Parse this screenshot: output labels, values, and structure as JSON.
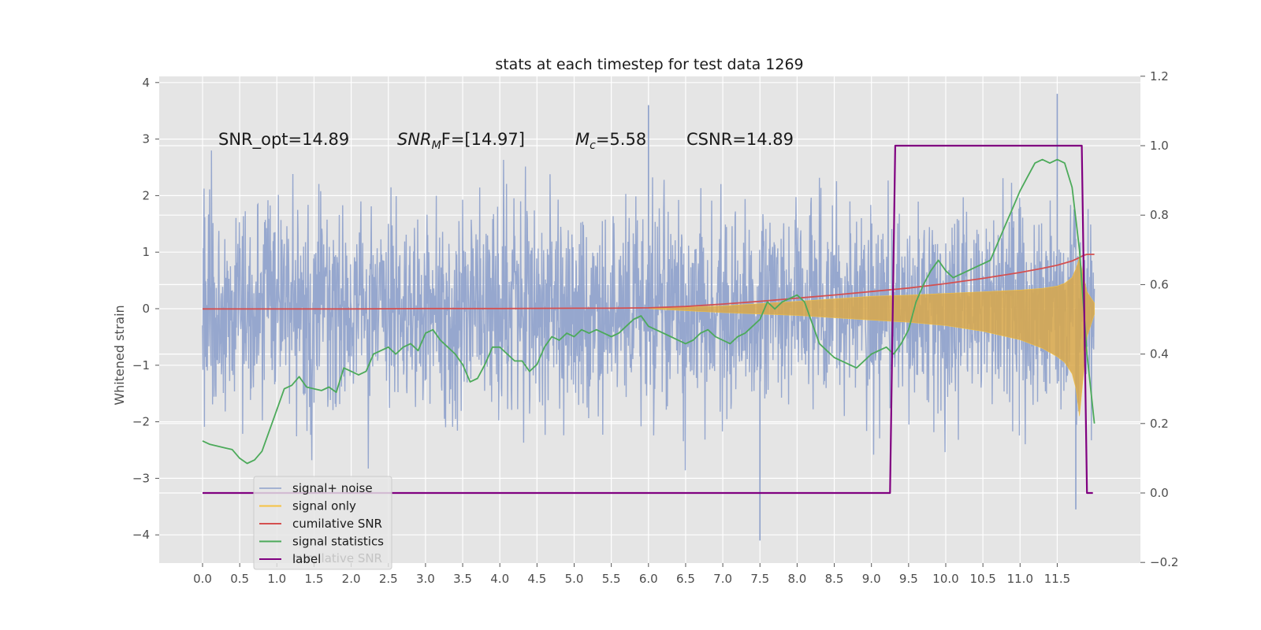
{
  "chart_data": {
    "type": "line",
    "title": "stats at each timestep for test data 1269",
    "xlabel": "",
    "ylabel": "Whitened strain",
    "y2label": "",
    "xlim": [
      -0.55,
      12.6
    ],
    "ylim": [
      -4.5,
      4.1
    ],
    "y2lim": [
      -0.2,
      1.2
    ],
    "grid": true,
    "background": "#e5e5e5",
    "x_ticks": [
      "0.0",
      "0.5",
      "1.0",
      "1.5",
      "2.0",
      "2.5",
      "3.0",
      "3.5",
      "4.0",
      "4.5",
      "5.0",
      "5.5",
      "6.0",
      "6.5",
      "7.0",
      "7.5",
      "8.0",
      "8.5",
      "9.0",
      "9.5",
      "10.0",
      "10.5",
      "11.0",
      "11.5"
    ],
    "y_ticks": [
      "4",
      "3",
      "2",
      "1",
      "0",
      "−1",
      "−2",
      "−3",
      "−4"
    ],
    "y2_ticks": [
      "1.2",
      "1.0",
      "0.8",
      "0.6",
      "0.4",
      "0.2",
      "0.0",
      "−0.2"
    ],
    "annotations": {
      "snr_opt": "SNR_opt=14.89",
      "snr_mf_main": "SNR",
      "snr_mf_sub": "M",
      "snr_mf_rest": "F=[14.97]",
      "mc_main": "M",
      "mc_sub": "c",
      "mc_rest": "=5.58",
      "csnr": "CSNR=14.89"
    },
    "legend": {
      "placement": "lower-left",
      "ghost_text": "cumilative SNR",
      "entries": [
        {
          "label": "signal+ noise",
          "color": "#8da0cb"
        },
        {
          "label": "signal only",
          "color": "#f5c242"
        },
        {
          "label": "cumilative SNR",
          "color": "#d45050"
        },
        {
          "label": "signal statistics",
          "color": "#4caa5a"
        },
        {
          "label": "label",
          "color": "#800080"
        }
      ]
    },
    "series": [
      {
        "name": "signal+ noise",
        "axis": "left",
        "color": "#8da0cb",
        "x_range": [
          0.0,
          12.0
        ],
        "amplitude_min": [
          -2.7,
          3.6
        ],
        "notable_outliers": [
          {
            "x": 6.0,
            "y": 3.6
          },
          {
            "x": 7.5,
            "y": -4.1
          },
          {
            "x": 11.5,
            "y": 3.8
          },
          {
            "x": 11.75,
            "y": -3.55
          }
        ]
      },
      {
        "name": "signal only",
        "axis": "left",
        "color": "#f5c242",
        "envelope_x": [
          6.0,
          7.0,
          8.0,
          9.0,
          9.5,
          10.0,
          10.5,
          11.0,
          11.3,
          11.5,
          11.6,
          11.7,
          11.75,
          11.8,
          11.9,
          12.0
        ],
        "envelope_upper": [
          0.0,
          0.05,
          0.13,
          0.22,
          0.24,
          0.27,
          0.3,
          0.33,
          0.36,
          0.4,
          0.45,
          0.55,
          0.7,
          0.9,
          0.3,
          0.1
        ],
        "envelope_lower": [
          0.0,
          -0.07,
          -0.12,
          -0.2,
          -0.24,
          -0.3,
          -0.4,
          -0.55,
          -0.7,
          -0.85,
          -0.95,
          -1.15,
          -1.4,
          -1.9,
          -0.5,
          -0.1
        ]
      },
      {
        "name": "cumilative SNR",
        "axis": "right",
        "color": "#d45050",
        "x": [
          0,
          1,
          2,
          3,
          4,
          5,
          5.5,
          6,
          6.5,
          7,
          7.5,
          8,
          8.5,
          9,
          9.5,
          10,
          10.5,
          11,
          11.3,
          11.5,
          11.7,
          11.8,
          11.85,
          11.9,
          12.0
        ],
        "y": [
          0.53,
          0.53,
          0.53,
          0.531,
          0.531,
          0.532,
          0.532,
          0.533,
          0.537,
          0.544,
          0.552,
          0.561,
          0.57,
          0.58,
          0.59,
          0.603,
          0.618,
          0.635,
          0.647,
          0.656,
          0.668,
          0.678,
          0.684,
          0.687,
          0.687
        ]
      },
      {
        "name": "signal statistics",
        "axis": "right",
        "color": "#4caa5a",
        "x": [
          0.0,
          0.1,
          0.2,
          0.3,
          0.4,
          0.5,
          0.6,
          0.7,
          0.8,
          0.9,
          1.0,
          1.1,
          1.2,
          1.3,
          1.4,
          1.5,
          1.6,
          1.7,
          1.8,
          1.9,
          2.0,
          2.1,
          2.2,
          2.3,
          2.4,
          2.5,
          2.6,
          2.7,
          2.8,
          2.9,
          3.0,
          3.1,
          3.2,
          3.3,
          3.4,
          3.5,
          3.6,
          3.7,
          3.8,
          3.9,
          4.0,
          4.1,
          4.2,
          4.3,
          4.4,
          4.5,
          4.6,
          4.7,
          4.8,
          4.9,
          5.0,
          5.1,
          5.2,
          5.3,
          5.4,
          5.5,
          5.6,
          5.7,
          5.8,
          5.9,
          6.0,
          6.1,
          6.2,
          6.3,
          6.4,
          6.5,
          6.6,
          6.7,
          6.8,
          6.9,
          7.0,
          7.1,
          7.2,
          7.3,
          7.4,
          7.5,
          7.6,
          7.7,
          7.8,
          7.9,
          8.0,
          8.1,
          8.2,
          8.3,
          8.4,
          8.5,
          8.6,
          8.7,
          8.8,
          8.9,
          9.0,
          9.1,
          9.2,
          9.3,
          9.4,
          9.5,
          9.6,
          9.7,
          9.8,
          9.9,
          10.0,
          10.1,
          10.2,
          10.3,
          10.4,
          10.5,
          10.6,
          10.7,
          10.8,
          10.9,
          11.0,
          11.1,
          11.2,
          11.3,
          11.4,
          11.5,
          11.6,
          11.7,
          11.8,
          11.9,
          12.0
        ],
        "y": [
          0.15,
          0.14,
          0.135,
          0.13,
          0.125,
          0.1,
          0.085,
          0.095,
          0.12,
          0.18,
          0.24,
          0.3,
          0.31,
          0.335,
          0.305,
          0.3,
          0.295,
          0.305,
          0.29,
          0.36,
          0.35,
          0.34,
          0.35,
          0.4,
          0.41,
          0.42,
          0.4,
          0.42,
          0.43,
          0.41,
          0.46,
          0.47,
          0.44,
          0.42,
          0.4,
          0.37,
          0.32,
          0.33,
          0.37,
          0.42,
          0.42,
          0.4,
          0.38,
          0.38,
          0.35,
          0.37,
          0.42,
          0.45,
          0.44,
          0.46,
          0.45,
          0.47,
          0.46,
          0.47,
          0.46,
          0.45,
          0.46,
          0.48,
          0.5,
          0.51,
          0.48,
          0.47,
          0.46,
          0.45,
          0.44,
          0.43,
          0.44,
          0.46,
          0.47,
          0.45,
          0.44,
          0.43,
          0.45,
          0.46,
          0.48,
          0.5,
          0.55,
          0.53,
          0.55,
          0.56,
          0.57,
          0.55,
          0.49,
          0.43,
          0.41,
          0.39,
          0.38,
          0.37,
          0.36,
          0.38,
          0.4,
          0.41,
          0.42,
          0.4,
          0.43,
          0.47,
          0.55,
          0.6,
          0.64,
          0.67,
          0.64,
          0.62,
          0.63,
          0.64,
          0.65,
          0.66,
          0.67,
          0.72,
          0.77,
          0.82,
          0.87,
          0.91,
          0.95,
          0.96,
          0.95,
          0.96,
          0.95,
          0.88,
          0.7,
          0.4,
          0.2
        ]
      },
      {
        "name": "label",
        "axis": "right",
        "color": "#800080",
        "x": [
          0.0,
          9.25,
          9.32,
          11.83,
          11.9,
          11.98
        ],
        "y": [
          0.0,
          0.0,
          1.0,
          1.0,
          0.0,
          0.0
        ]
      }
    ]
  }
}
